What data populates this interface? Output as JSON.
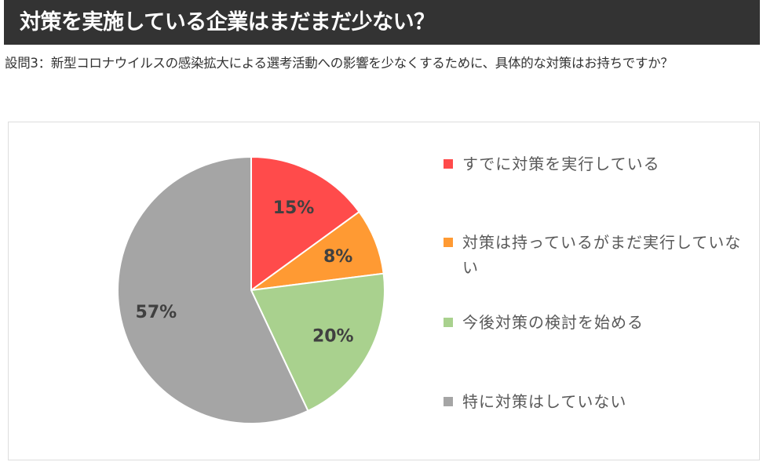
{
  "header": {
    "title": "対策を実施している企業はまだまだ少ない？"
  },
  "question": {
    "text": "設問3：新型コロナウイルスの感染拡大による選考活動への影響を少なくするために、具体的な対策はお持ちですか？"
  },
  "chart_data": {
    "type": "pie",
    "title": "",
    "legend_position": "right",
    "slices": [
      {
        "label": "すでに対策を実行している",
        "value": 15,
        "display": "15%",
        "color": "#ff4b4b"
      },
      {
        "label": "対策は持っているがまだ実行していない",
        "value": 8,
        "display": "8%",
        "color": "#ff9a33"
      },
      {
        "label": "今後対策の検討を始める",
        "value": 20,
        "display": "20%",
        "color": "#a9d18e"
      },
      {
        "label": "特に対策はしていない",
        "value": 57,
        "display": "57%",
        "color": "#a5a5a5"
      }
    ]
  }
}
